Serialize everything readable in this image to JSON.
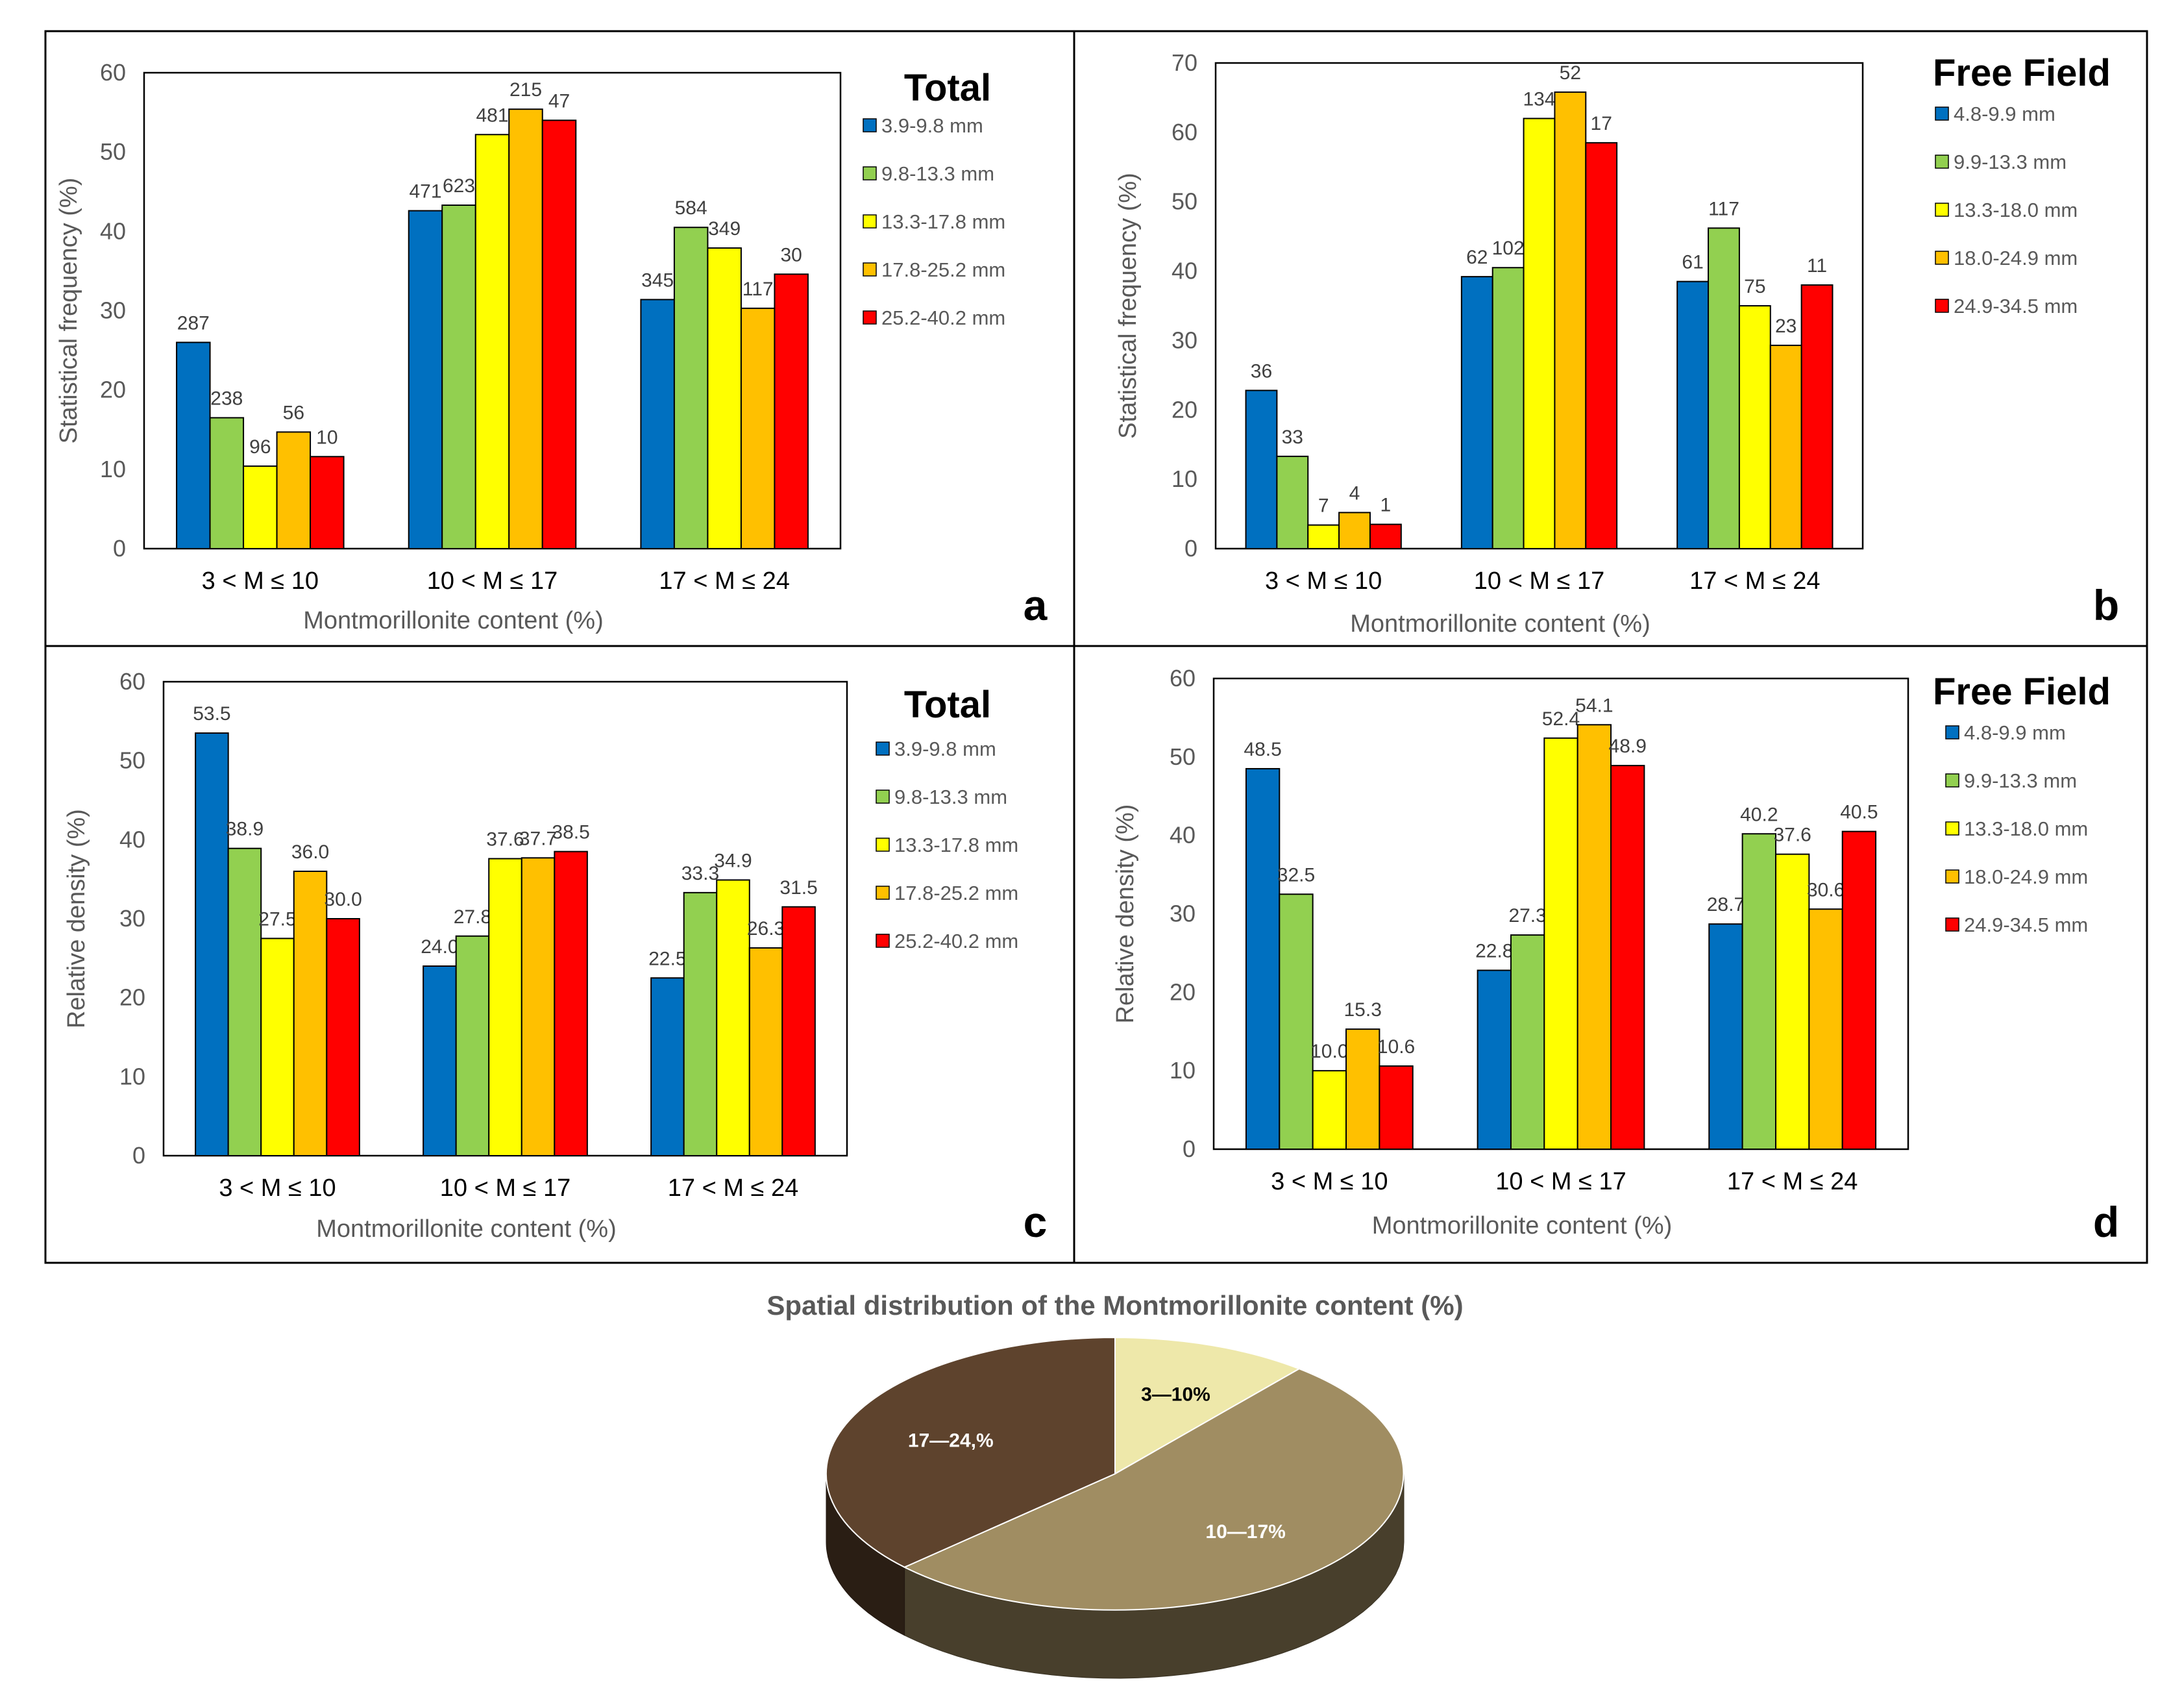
{
  "chart_data": [
    {
      "type": "bar",
      "panel_letter": "a",
      "title": "Total",
      "xlabel": "Montmorillonite content (%)",
      "ylabel": "Statistical frequency (%)",
      "ylim": [
        0,
        60
      ],
      "yticks": [
        0,
        10,
        20,
        30,
        40,
        50,
        60
      ],
      "categories": [
        "3 < M ≤ 10",
        "10 < M ≤ 17",
        "17 < M ≤ 24"
      ],
      "grid": false,
      "legend_position": "right",
      "series": [
        {
          "name": "3.9-9.8 mm",
          "color": "#0070C0",
          "values": [
            26,
            42.6,
            31.4
          ],
          "labels": [
            "287",
            "471",
            "345"
          ]
        },
        {
          "name": "9.8-13.3 mm",
          "color": "#92D050",
          "values": [
            16.5,
            43.3,
            40.5
          ],
          "labels": [
            "238",
            "623",
            "584"
          ]
        },
        {
          "name": "13.3-17.8 mm",
          "color": "#FFFF00",
          "values": [
            10.4,
            52.2,
            37.9
          ],
          "labels": [
            "96",
            "481",
            "349"
          ]
        },
        {
          "name": "17.8-25.2 mm",
          "color": "#FFC000",
          "values": [
            14.7,
            55.4,
            30.3
          ],
          "labels": [
            "56",
            "215",
            "117"
          ]
        },
        {
          "name": "25.2-40.2 mm",
          "color": "#FF0000",
          "values": [
            11.6,
            54,
            34.6
          ],
          "labels": [
            "10",
            "47",
            "30"
          ]
        }
      ]
    },
    {
      "type": "bar",
      "panel_letter": "b",
      "title": "Free Field",
      "xlabel": "Montmorillonite content (%)",
      "ylabel": "Statistical frequency (%)",
      "ylim": [
        0,
        70
      ],
      "yticks": [
        0,
        10,
        20,
        30,
        40,
        50,
        60,
        70
      ],
      "categories": [
        "3 < M ≤ 10",
        "10 < M ≤ 17",
        "17 < M ≤ 24"
      ],
      "grid": false,
      "legend_position": "right",
      "series": [
        {
          "name": "4.8-9.9 mm",
          "color": "#0070C0",
          "values": [
            22.8,
            39.2,
            38.5
          ],
          "labels": [
            "36",
            "62",
            "61"
          ]
        },
        {
          "name": "9.9-13.3 mm",
          "color": "#92D050",
          "values": [
            13.3,
            40.5,
            46.2
          ],
          "labels": [
            "33",
            "102",
            "117"
          ]
        },
        {
          "name": "13.3-18.0 mm",
          "color": "#FFFF00",
          "values": [
            3.4,
            62,
            35
          ],
          "labels": [
            "7",
            "134",
            "75"
          ]
        },
        {
          "name": "18.0-24.9 mm",
          "color": "#FFC000",
          "values": [
            5.2,
            65.8,
            29.3
          ],
          "labels": [
            "4",
            "52",
            "23"
          ]
        },
        {
          "name": "24.9-34.5 mm",
          "color": "#FF0000",
          "values": [
            3.5,
            58.5,
            38
          ],
          "labels": [
            "1",
            "17",
            "11"
          ]
        }
      ]
    },
    {
      "type": "bar",
      "panel_letter": "c",
      "title": "Total",
      "xlabel": "Montmorillonite content (%)",
      "ylabel": "Relative density (%)",
      "ylim": [
        0,
        60
      ],
      "yticks": [
        0,
        10,
        20,
        30,
        40,
        50,
        60
      ],
      "categories": [
        "3 < M ≤ 10",
        "10 < M ≤ 17",
        "17 < M ≤ 24"
      ],
      "grid": false,
      "legend_position": "right",
      "series": [
        {
          "name": "3.9-9.8 mm",
          "color": "#0070C0",
          "values": [
            53.5,
            24.0,
            22.5
          ],
          "labels": [
            "53.5",
            "24.0",
            "22.5"
          ]
        },
        {
          "name": "9.8-13.3 mm",
          "color": "#92D050",
          "values": [
            38.9,
            27.8,
            33.3
          ],
          "labels": [
            "38.9",
            "27.8",
            "33.3"
          ]
        },
        {
          "name": "13.3-17.8 mm",
          "color": "#FFFF00",
          "values": [
            27.5,
            37.6,
            34.9
          ],
          "labels": [
            "27.5",
            "37.6",
            "34.9"
          ]
        },
        {
          "name": "17.8-25.2 mm",
          "color": "#FFC000",
          "values": [
            36.0,
            37.7,
            26.3
          ],
          "labels": [
            "36.0",
            "37.7",
            "26.3"
          ]
        },
        {
          "name": "25.2-40.2 mm",
          "color": "#FF0000",
          "values": [
            30.0,
            38.5,
            31.5
          ],
          "labels": [
            "30.0",
            "38.5",
            "31.5"
          ]
        }
      ]
    },
    {
      "type": "bar",
      "panel_letter": "d",
      "title": "Free Field",
      "xlabel": "Montmorillonite content (%)",
      "ylabel": "Relative density (%)",
      "ylim": [
        0,
        60
      ],
      "yticks": [
        0,
        10,
        20,
        30,
        40,
        50,
        60
      ],
      "categories": [
        "3 < M ≤ 10",
        "10 < M ≤ 17",
        "17 < M ≤ 24"
      ],
      "grid": false,
      "legend_position": "right",
      "series": [
        {
          "name": "4.8-9.9 mm",
          "color": "#0070C0",
          "values": [
            48.5,
            22.8,
            28.7
          ],
          "labels": [
            "48.5",
            "22.8",
            "28.7"
          ]
        },
        {
          "name": "9.9-13.3 mm",
          "color": "#92D050",
          "values": [
            32.5,
            27.3,
            40.2
          ],
          "labels": [
            "32.5",
            "27.3",
            "40.2"
          ]
        },
        {
          "name": "13.3-18.0 mm",
          "color": "#FFFF00",
          "values": [
            10.0,
            52.4,
            37.6
          ],
          "labels": [
            "10.0",
            "52.4",
            "37.6"
          ]
        },
        {
          "name": "18.0-24.9 mm",
          "color": "#FFC000",
          "values": [
            15.3,
            54.1,
            30.6
          ],
          "labels": [
            "15.3",
            "54.1",
            "30.6"
          ]
        },
        {
          "name": "24.9-34.5 mm",
          "color": "#FF0000",
          "values": [
            10.6,
            48.9,
            40.5
          ],
          "labels": [
            "10.6",
            "48.9",
            "40.5"
          ]
        }
      ]
    },
    {
      "type": "pie",
      "title": "Spatial distribution of the Montmorillonite content (%)",
      "slices": [
        {
          "label": "3—10%",
          "value": 11,
          "color": "#EEE8AA",
          "text_color": "#000000"
        },
        {
          "label": "10—17%",
          "value": 52,
          "color": "#A08D62",
          "text_color": "#ffffff"
        },
        {
          "label": "17—24,%",
          "value": 37,
          "color": "#5E432D",
          "text_color": "#ffffff"
        }
      ]
    }
  ]
}
